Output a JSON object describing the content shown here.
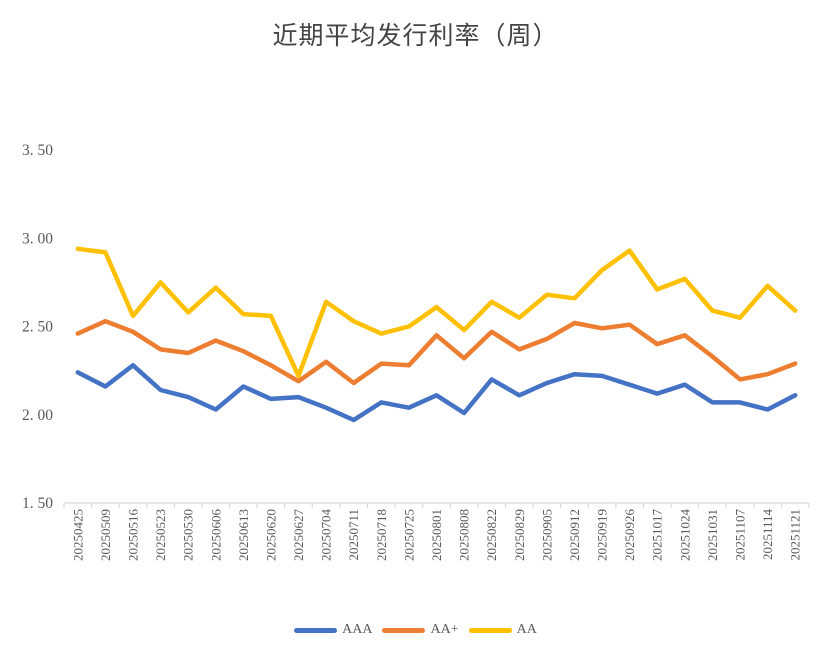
{
  "title": "近期平均发行利率（周）",
  "legend": [
    {
      "label": "AAA",
      "color": "#4472C4"
    },
    {
      "label": "AA+",
      "color": "#ED7D31"
    },
    {
      "label": "AA",
      "color": "#FFC000"
    }
  ],
  "colors": {
    "axis": "#D9D9D9",
    "tick_label": "#595959",
    "title_text": "#444444"
  },
  "chart_data": {
    "type": "line",
    "title": "近期平均发行利率（周）",
    "categories": [
      "20250425",
      "20250509",
      "20250516",
      "20250523",
      "20250530",
      "20250606",
      "20250613",
      "20250620",
      "20250627",
      "20250704",
      "20250711",
      "20250718",
      "20250725",
      "20250801",
      "20250808",
      "20250822",
      "20250829",
      "20250905",
      "20250912",
      "20250919",
      "20250926",
      "20251017",
      "20251024",
      "20251031",
      "20251107",
      "20251114",
      "20251121"
    ],
    "series": [
      {
        "name": "AAA",
        "color": "#4472C4",
        "values": [
          2.24,
          2.16,
          2.28,
          2.14,
          2.1,
          2.03,
          2.16,
          2.09,
          2.1,
          2.04,
          1.97,
          2.07,
          2.04,
          2.11,
          2.01,
          2.2,
          2.11,
          2.18,
          2.23,
          2.22,
          2.17,
          2.12,
          2.17,
          2.07,
          2.07,
          2.03,
          2.11
        ]
      },
      {
        "name": "AA+",
        "color": "#ED7D31",
        "values": [
          2.46,
          2.53,
          2.47,
          2.37,
          2.35,
          2.42,
          2.36,
          2.28,
          2.19,
          2.3,
          2.18,
          2.29,
          2.28,
          2.45,
          2.32,
          2.47,
          2.37,
          2.43,
          2.52,
          2.49,
          2.51,
          2.4,
          2.45,
          2.33,
          2.2,
          2.23,
          2.29
        ]
      },
      {
        "name": "AA",
        "color": "#FFC000",
        "values": [
          2.94,
          2.92,
          2.56,
          2.75,
          2.58,
          2.72,
          2.57,
          2.56,
          2.22,
          2.64,
          2.53,
          2.46,
          2.5,
          2.61,
          2.48,
          2.64,
          2.55,
          2.68,
          2.66,
          2.82,
          2.93,
          2.71,
          2.77,
          2.59,
          2.55,
          2.73,
          2.59
        ]
      }
    ],
    "ylim": [
      1.5,
      3.5
    ],
    "yticks": [
      1.5,
      2.0,
      2.5,
      3.0,
      3.5
    ],
    "ytick_labels": [
      "1. 50",
      "2. 00",
      "2. 50",
      "3. 00",
      "3. 50"
    ],
    "xlabel": "",
    "ylabel": "",
    "grid": false,
    "legend_position": "bottom",
    "x_tick_label_rotation": 90
  }
}
